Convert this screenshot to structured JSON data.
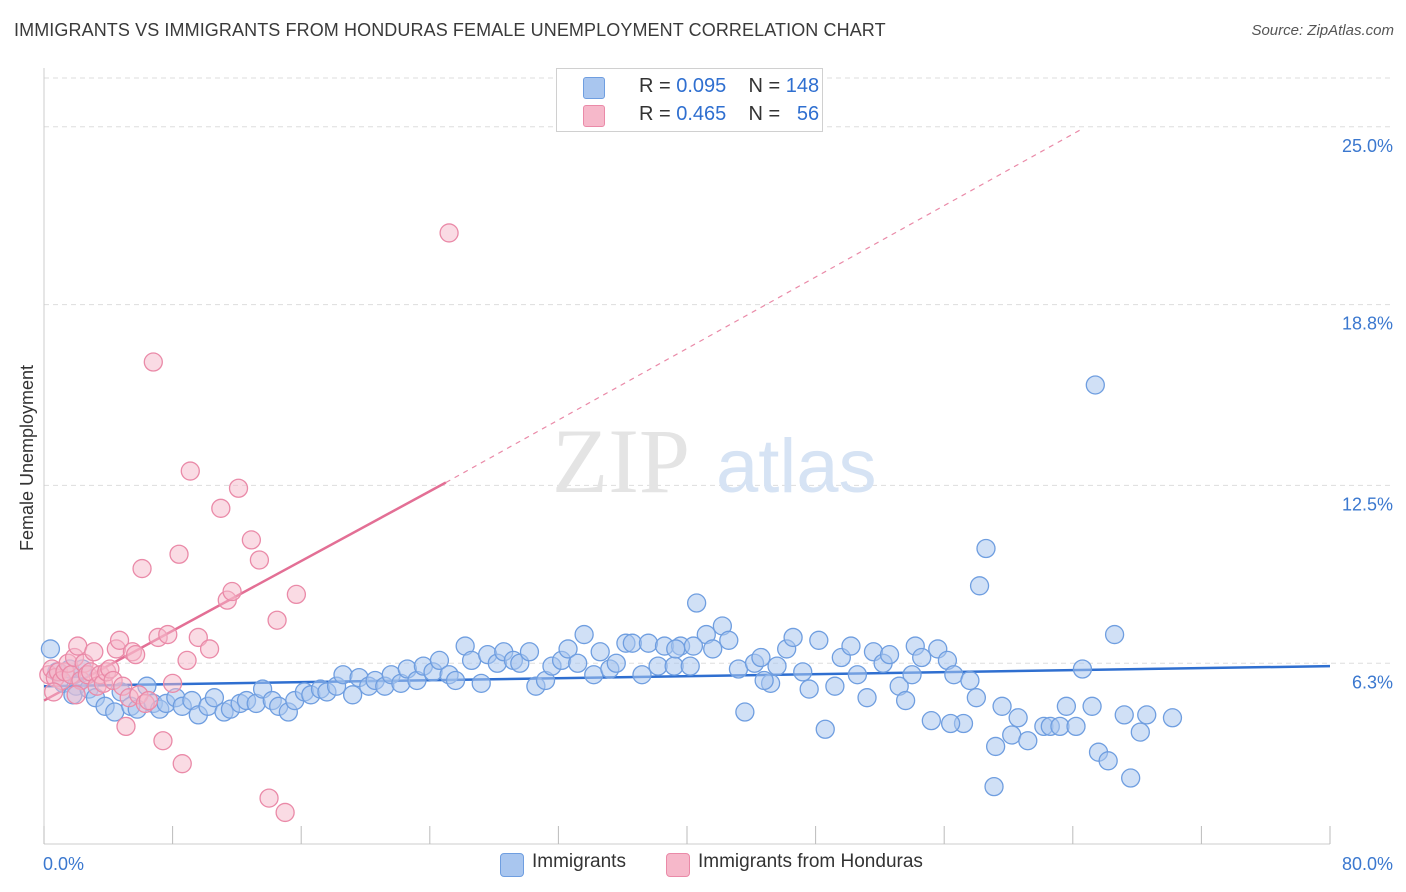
{
  "title": "IMMIGRANTS VS IMMIGRANTS FROM HONDURAS FEMALE UNEMPLOYMENT CORRELATION CHART",
  "source": "Source: ZipAtlas.com",
  "watermark": {
    "zip": "ZIP",
    "atlas": "atlas"
  },
  "legend": {
    "rows": [
      {
        "r_label": "R = ",
        "r_value": "0.095",
        "n_label": "N = ",
        "n_value": "148"
      },
      {
        "r_label": "R = ",
        "r_value": "0.465",
        "n_label": "N = ",
        "n_value": "56"
      }
    ]
  },
  "bottom_legend": {
    "series1": "Immigrants",
    "series2": "Immigrants from Honduras"
  },
  "colors": {
    "blue_fill": "#a9c6ef",
    "blue_stroke": "#6f9ee0",
    "blue_line": "#2f6fd0",
    "pink_fill": "#f6b8ca",
    "pink_stroke": "#ea8aa8",
    "pink_line": "#e36f95",
    "axis_text": "#3b78cf",
    "grid": "#dddddd"
  },
  "chart_data": {
    "type": "scatter",
    "title": "IMMIGRANTS VS IMMIGRANTS FROM HONDURAS FEMALE UNEMPLOYMENT CORRELATION CHART",
    "xlabel": "",
    "ylabel": "Female Unemployment",
    "xlim": [
      0,
      80
    ],
    "ylim": [
      0,
      26.7
    ],
    "x_tick_labels": [
      "0.0%",
      "80.0%"
    ],
    "y_ticks": [
      6.3,
      12.5,
      18.8,
      25.0
    ],
    "y_tick_labels": [
      "6.3%",
      "12.5%",
      "18.8%",
      "25.0%"
    ],
    "grid": true,
    "legend_position": "top-center",
    "series": [
      {
        "name": "Immigrants",
        "R": 0.095,
        "N": 148,
        "trend": {
          "x": [
            0,
            80
          ],
          "y": [
            5.5,
            6.2
          ]
        },
        "points": [
          [
            0.4,
            6.8
          ],
          [
            0.8,
            6.0
          ],
          [
            1.2,
            5.6
          ],
          [
            1.6,
            6.1
          ],
          [
            2.0,
            5.5
          ],
          [
            2.4,
            6.1
          ],
          [
            1.8,
            5.2
          ],
          [
            2.8,
            5.4
          ],
          [
            3.2,
            5.1
          ],
          [
            3.8,
            4.8
          ],
          [
            4.4,
            4.6
          ],
          [
            4.8,
            5.3
          ],
          [
            5.4,
            4.8
          ],
          [
            5.8,
            4.7
          ],
          [
            6.4,
            5.5
          ],
          [
            6.8,
            4.9
          ],
          [
            7.2,
            4.7
          ],
          [
            7.6,
            4.9
          ],
          [
            8.2,
            5.1
          ],
          [
            8.6,
            4.8
          ],
          [
            9.2,
            5.0
          ],
          [
            9.6,
            4.5
          ],
          [
            10.2,
            4.8
          ],
          [
            10.6,
            5.1
          ],
          [
            11.2,
            4.6
          ],
          [
            11.6,
            4.7
          ],
          [
            12.2,
            4.9
          ],
          [
            12.6,
            5.0
          ],
          [
            13.2,
            4.9
          ],
          [
            13.6,
            5.4
          ],
          [
            14.2,
            5.0
          ],
          [
            14.6,
            4.8
          ],
          [
            15.2,
            4.6
          ],
          [
            15.6,
            5.0
          ],
          [
            16.2,
            5.3
          ],
          [
            16.6,
            5.2
          ],
          [
            17.2,
            5.4
          ],
          [
            17.6,
            5.3
          ],
          [
            18.2,
            5.5
          ],
          [
            18.6,
            5.9
          ],
          [
            19.2,
            5.2
          ],
          [
            19.6,
            5.8
          ],
          [
            20.2,
            5.5
          ],
          [
            20.6,
            5.7
          ],
          [
            21.2,
            5.5
          ],
          [
            21.6,
            5.9
          ],
          [
            22.2,
            5.6
          ],
          [
            22.6,
            6.1
          ],
          [
            23.2,
            5.7
          ],
          [
            23.6,
            6.2
          ],
          [
            24.2,
            6.0
          ],
          [
            24.6,
            6.4
          ],
          [
            25.2,
            5.9
          ],
          [
            25.6,
            5.7
          ],
          [
            26.2,
            6.9
          ],
          [
            26.6,
            6.4
          ],
          [
            27.2,
            5.6
          ],
          [
            27.6,
            6.6
          ],
          [
            28.2,
            6.3
          ],
          [
            28.6,
            6.7
          ],
          [
            29.2,
            6.4
          ],
          [
            29.6,
            6.3
          ],
          [
            30.2,
            6.7
          ],
          [
            30.6,
            5.5
          ],
          [
            31.2,
            5.7
          ],
          [
            31.6,
            6.2
          ],
          [
            32.2,
            6.4
          ],
          [
            32.6,
            6.8
          ],
          [
            33.2,
            6.3
          ],
          [
            33.6,
            7.3
          ],
          [
            34.2,
            5.9
          ],
          [
            34.6,
            6.7
          ],
          [
            35.2,
            6.1
          ],
          [
            35.6,
            6.3
          ],
          [
            36.2,
            7.0
          ],
          [
            36.6,
            7.0
          ],
          [
            37.2,
            5.9
          ],
          [
            37.6,
            7.0
          ],
          [
            38.2,
            6.2
          ],
          [
            38.6,
            6.9
          ],
          [
            39.2,
            6.2
          ],
          [
            39.6,
            6.9
          ],
          [
            40.2,
            6.2
          ],
          [
            40.6,
            8.4
          ],
          [
            41.2,
            7.3
          ],
          [
            41.6,
            6.8
          ],
          [
            42.2,
            7.6
          ],
          [
            42.6,
            7.1
          ],
          [
            43.2,
            6.1
          ],
          [
            43.6,
            4.6
          ],
          [
            44.2,
            6.3
          ],
          [
            44.6,
            6.5
          ],
          [
            45.2,
            5.6
          ],
          [
            45.6,
            6.2
          ],
          [
            46.2,
            6.8
          ],
          [
            46.6,
            7.2
          ],
          [
            47.2,
            6.0
          ],
          [
            47.6,
            5.4
          ],
          [
            48.2,
            7.1
          ],
          [
            48.6,
            4.0
          ],
          [
            49.2,
            5.5
          ],
          [
            49.6,
            6.5
          ],
          [
            50.2,
            6.9
          ],
          [
            50.6,
            5.9
          ],
          [
            51.2,
            5.1
          ],
          [
            51.6,
            6.7
          ],
          [
            52.2,
            6.3
          ],
          [
            52.6,
            6.6
          ],
          [
            53.2,
            5.5
          ],
          [
            53.6,
            5.0
          ],
          [
            54.2,
            6.9
          ],
          [
            54.6,
            6.5
          ],
          [
            55.2,
            4.3
          ],
          [
            55.6,
            6.8
          ],
          [
            56.2,
            6.4
          ],
          [
            56.6,
            5.9
          ],
          [
            57.2,
            4.2
          ],
          [
            57.6,
            5.7
          ],
          [
            58.2,
            9.0
          ],
          [
            58.6,
            10.3
          ],
          [
            59.2,
            3.4
          ],
          [
            59.6,
            4.8
          ],
          [
            60.2,
            3.8
          ],
          [
            60.6,
            4.4
          ],
          [
            61.2,
            3.6
          ],
          [
            62.2,
            4.1
          ],
          [
            62.6,
            4.1
          ],
          [
            63.2,
            4.1
          ],
          [
            63.6,
            4.8
          ],
          [
            64.2,
            4.1
          ],
          [
            64.6,
            6.1
          ],
          [
            65.2,
            4.8
          ],
          [
            65.6,
            3.2
          ],
          [
            66.2,
            2.9
          ],
          [
            66.6,
            7.3
          ],
          [
            67.2,
            4.5
          ],
          [
            67.6,
            2.3
          ],
          [
            68.2,
            3.9
          ],
          [
            68.6,
            4.5
          ],
          [
            70.2,
            4.4
          ],
          [
            65.4,
            16.0
          ],
          [
            59.1,
            2.0
          ],
          [
            39.3,
            6.8
          ],
          [
            40.4,
            6.9
          ],
          [
            44.8,
            5.7
          ],
          [
            54.0,
            5.9
          ],
          [
            56.4,
            4.2
          ],
          [
            58.0,
            5.1
          ]
        ]
      },
      {
        "name": "Immigrants from Honduras",
        "R": 0.465,
        "N": 56,
        "trend": {
          "x": [
            0,
            25
          ],
          "y": [
            5.0,
            12.6
          ],
          "dashed_to": {
            "x": 64.5,
            "y": 24.9
          }
        },
        "points": [
          [
            0.3,
            5.9
          ],
          [
            0.5,
            6.1
          ],
          [
            0.7,
            5.8
          ],
          [
            0.9,
            6.0
          ],
          [
            1.1,
            5.7
          ],
          [
            1.3,
            6.0
          ],
          [
            1.5,
            6.3
          ],
          [
            1.7,
            5.9
          ],
          [
            1.9,
            6.5
          ],
          [
            2.1,
            6.9
          ],
          [
            2.3,
            5.7
          ],
          [
            2.5,
            6.3
          ],
          [
            2.7,
            5.9
          ],
          [
            2.9,
            6.0
          ],
          [
            3.1,
            6.7
          ],
          [
            3.3,
            5.5
          ],
          [
            3.5,
            5.9
          ],
          [
            3.7,
            5.6
          ],
          [
            3.9,
            6.0
          ],
          [
            4.1,
            6.1
          ],
          [
            4.3,
            5.7
          ],
          [
            4.5,
            6.8
          ],
          [
            4.7,
            7.1
          ],
          [
            4.9,
            5.5
          ],
          [
            5.1,
            4.1
          ],
          [
            5.3,
            5.1
          ],
          [
            5.5,
            6.7
          ],
          [
            5.7,
            6.6
          ],
          [
            5.9,
            5.2
          ],
          [
            6.1,
            9.6
          ],
          [
            6.3,
            4.9
          ],
          [
            6.5,
            5.0
          ],
          [
            6.8,
            16.8
          ],
          [
            7.1,
            7.2
          ],
          [
            7.4,
            3.6
          ],
          [
            7.7,
            7.3
          ],
          [
            8.0,
            5.6
          ],
          [
            8.4,
            10.1
          ],
          [
            8.6,
            2.8
          ],
          [
            8.9,
            6.4
          ],
          [
            9.1,
            13.0
          ],
          [
            9.6,
            7.2
          ],
          [
            10.3,
            6.8
          ],
          [
            11.0,
            11.7
          ],
          [
            11.4,
            8.5
          ],
          [
            11.7,
            8.8
          ],
          [
            12.1,
            12.4
          ],
          [
            12.9,
            10.6
          ],
          [
            13.4,
            9.9
          ],
          [
            14.0,
            1.6
          ],
          [
            14.5,
            7.8
          ],
          [
            15.0,
            1.1
          ],
          [
            15.7,
            8.7
          ],
          [
            25.2,
            21.3
          ],
          [
            0.6,
            5.3
          ],
          [
            2.0,
            5.2
          ]
        ]
      }
    ]
  }
}
